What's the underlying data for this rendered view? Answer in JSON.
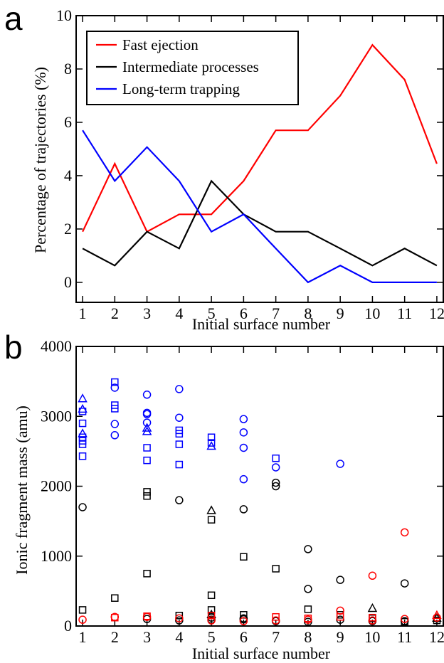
{
  "panels": {
    "a": {
      "letter": "a"
    },
    "b": {
      "letter": "b"
    }
  },
  "chart_data": [
    {
      "type": "line",
      "panel": "a",
      "xlabel": "Initial surface number",
      "ylabel": "Percentage of trajectories (%)",
      "xlim": [
        0.8,
        12.2
      ],
      "ylim": [
        -0.75,
        10
      ],
      "x": [
        1,
        2,
        3,
        4,
        5,
        6,
        7,
        8,
        9,
        10,
        11,
        12
      ],
      "xticks": [
        1,
        2,
        3,
        4,
        5,
        6,
        7,
        8,
        9,
        10,
        11,
        12
      ],
      "yticks": [
        0,
        2,
        4,
        6,
        8,
        10
      ],
      "legend_position": "top-left",
      "series": [
        {
          "name": "Fast ejection",
          "color": "#ff0000",
          "values": [
            1.9,
            4.45,
            1.9,
            2.55,
            2.55,
            3.8,
            5.7,
            5.7,
            7.0,
            8.9,
            7.6,
            4.45
          ]
        },
        {
          "name": "Intermediate processes",
          "color": "#000000",
          "values": [
            1.27,
            0.63,
            1.9,
            1.27,
            3.8,
            2.55,
            1.9,
            1.9,
            1.27,
            0.63,
            1.27,
            0.63
          ]
        },
        {
          "name": "Long-term trapping",
          "color": "#0000ff",
          "values": [
            5.7,
            3.8,
            5.07,
            3.8,
            1.9,
            2.55,
            1.27,
            0.0,
            0.63,
            0.0,
            0.0,
            0.0
          ]
        }
      ]
    },
    {
      "type": "scatter",
      "panel": "b",
      "xlabel": "Initial surface number",
      "ylabel": "Ionic fragment mass (amu)",
      "xlim": [
        0.8,
        12.2
      ],
      "ylim": [
        0,
        4000
      ],
      "xticks": [
        1,
        2,
        3,
        4,
        5,
        6,
        7,
        8,
        9,
        10,
        11,
        12
      ],
      "yticks": [
        0,
        1000,
        2000,
        3000,
        4000
      ],
      "series": [
        {
          "color": "#0000ff",
          "marker": "circle",
          "points": [
            [
              2,
              3410
            ],
            [
              2,
              2890
            ],
            [
              2,
              2730
            ],
            [
              3,
              3310
            ],
            [
              3,
              3050
            ],
            [
              3,
              3030
            ],
            [
              3,
              2910
            ],
            [
              4,
              3390
            ],
            [
              4,
              2980
            ],
            [
              6,
              2960
            ],
            [
              6,
              2770
            ],
            [
              6,
              2550
            ],
            [
              6,
              2100
            ],
            [
              7,
              2270
            ],
            [
              9,
              2320
            ]
          ]
        },
        {
          "color": "#0000ff",
          "marker": "square",
          "points": [
            [
              1,
              3070
            ],
            [
              1,
              2900
            ],
            [
              1,
              2700
            ],
            [
              1,
              2650
            ],
            [
              1,
              2600
            ],
            [
              1,
              2430
            ],
            [
              2,
              3490
            ],
            [
              2,
              3160
            ],
            [
              2,
              3110
            ],
            [
              3,
              2550
            ],
            [
              3,
              2370
            ],
            [
              4,
              2800
            ],
            [
              4,
              2750
            ],
            [
              4,
              2600
            ],
            [
              4,
              2310
            ],
            [
              5,
              2700
            ],
            [
              5,
              2620
            ],
            [
              7,
              2400
            ]
          ]
        },
        {
          "color": "#0000ff",
          "marker": "triangle",
          "points": [
            [
              1,
              3250
            ],
            [
              1,
              3100
            ],
            [
              1,
              2750
            ],
            [
              3,
              2830
            ],
            [
              3,
              2780
            ],
            [
              5,
              2570
            ]
          ]
        },
        {
          "color": "#000000",
          "marker": "circle",
          "points": [
            [
              1,
              1700
            ],
            [
              4,
              1800
            ],
            [
              6,
              1670
            ],
            [
              7,
              2050
            ],
            [
              7,
              2000
            ],
            [
              8,
              1100
            ],
            [
              8,
              530
            ],
            [
              9,
              660
            ],
            [
              11,
              610
            ],
            [
              3,
              100
            ],
            [
              4,
              80
            ],
            [
              5,
              90
            ],
            [
              5,
              120
            ],
            [
              6,
              110
            ],
            [
              6,
              95
            ],
            [
              7,
              70
            ],
            [
              8,
              60
            ],
            [
              9,
              90
            ],
            [
              10,
              70
            ],
            [
              11,
              70
            ],
            [
              12,
              110
            ]
          ]
        },
        {
          "color": "#000000",
          "marker": "square",
          "points": [
            [
              1,
              230
            ],
            [
              2,
              400
            ],
            [
              3,
              1920
            ],
            [
              3,
              1860
            ],
            [
              3,
              750
            ],
            [
              4,
              150
            ],
            [
              5,
              1520
            ],
            [
              5,
              440
            ],
            [
              5,
              230
            ],
            [
              6,
              990
            ],
            [
              6,
              160
            ],
            [
              7,
              820
            ],
            [
              8,
              240
            ],
            [
              9,
              160
            ],
            [
              10,
              110
            ],
            [
              11,
              60
            ],
            [
              12,
              80
            ]
          ]
        },
        {
          "color": "#000000",
          "marker": "triangle",
          "points": [
            [
              5,
              1650
            ],
            [
              5,
              160
            ],
            [
              10,
              250
            ],
            [
              12,
              110
            ]
          ]
        },
        {
          "color": "#ff0000",
          "marker": "circle",
          "points": [
            [
              1,
              90
            ],
            [
              2,
              130
            ],
            [
              3,
              130
            ],
            [
              4,
              110
            ],
            [
              5,
              80
            ],
            [
              6,
              70
            ],
            [
              7,
              80
            ],
            [
              8,
              90
            ],
            [
              9,
              220
            ],
            [
              10,
              720
            ],
            [
              10,
              80
            ],
            [
              11,
              1340
            ],
            [
              11,
              100
            ],
            [
              12,
              120
            ]
          ]
        },
        {
          "color": "#ff0000",
          "marker": "square",
          "points": [
            [
              2,
              120
            ],
            [
              3,
              140
            ],
            [
              5,
              150
            ],
            [
              7,
              130
            ],
            [
              8,
              110
            ],
            [
              9,
              130
            ],
            [
              10,
              120
            ]
          ]
        },
        {
          "color": "#ff0000",
          "marker": "triangle",
          "points": [
            [
              12,
              150
            ]
          ]
        }
      ]
    }
  ]
}
